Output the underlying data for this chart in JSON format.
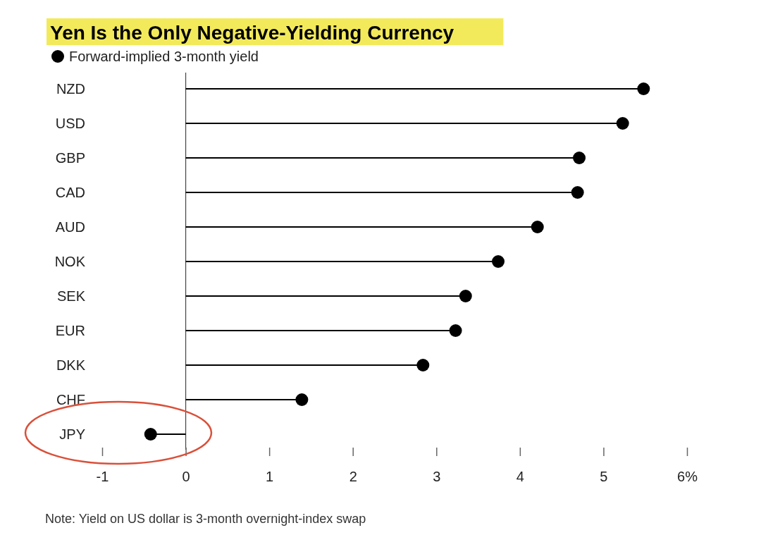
{
  "chart_data": {
    "type": "lollipop",
    "orientation": "horizontal",
    "title": "Yen Is the Only Negative-Yielding Currency",
    "categories": [
      "NZD",
      "USD",
      "GBP",
      "CAD",
      "AUD",
      "NOK",
      "SEK",
      "EUR",
      "DKK",
      "CHF",
      "JPY"
    ],
    "series": [
      {
        "name": "Forward-implied 3-month yield",
        "color": "#000000",
        "values": [
          5.48,
          5.23,
          4.71,
          4.69,
          4.21,
          3.74,
          3.35,
          3.23,
          2.84,
          1.39,
          -0.42
        ]
      }
    ],
    "xlim": [
      -1,
      6
    ],
    "xticks": [
      -1,
      0,
      1,
      2,
      3,
      4,
      5,
      {
        "value": 6,
        "label": "6%"
      }
    ],
    "marker": "circle",
    "legend": "top left",
    "grid": false,
    "annotations": [
      "Note: Yield on US dollar is 3-month overnight-index swap"
    ]
  }
}
